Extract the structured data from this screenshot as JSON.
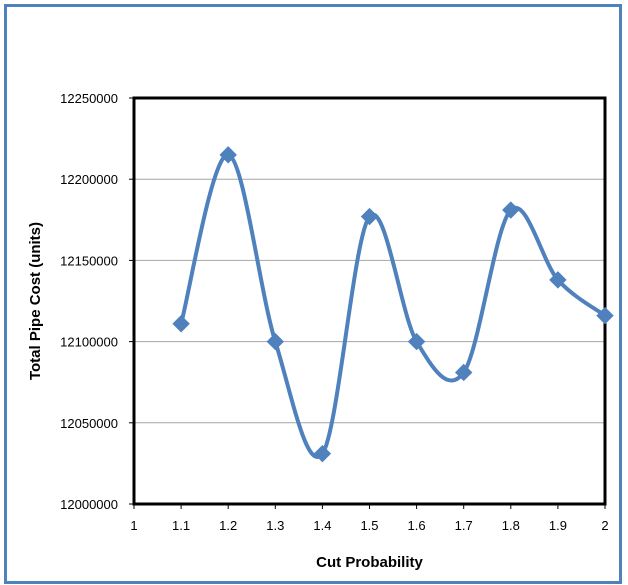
{
  "chart_data": {
    "type": "line",
    "title": "",
    "xlabel": "Cut Probability",
    "ylabel": "Total Pipe Cost (units)",
    "xlim": [
      1,
      2
    ],
    "ylim": [
      12000000,
      12250000
    ],
    "x_ticks": [
      "1",
      "1.1",
      "1.2",
      "1.3",
      "1.4",
      "1.5",
      "1.6",
      "1.7",
      "1.8",
      "1.9",
      "2"
    ],
    "y_ticks": [
      "12000000",
      "12050000",
      "12100000",
      "12150000",
      "12200000",
      "12250000"
    ],
    "grid": true,
    "legend": "none",
    "series": [
      {
        "color": "#4f81bd",
        "marker": "diamond",
        "smooth": true,
        "x": [
          1.1,
          1.2,
          1.3,
          1.4,
          1.5,
          1.6,
          1.7,
          1.8,
          1.9,
          2.0
        ],
        "y": [
          12111000,
          12215000,
          12100000,
          12031000,
          12177000,
          12100000,
          12081000,
          12181000,
          12138000,
          12116000
        ]
      }
    ]
  }
}
